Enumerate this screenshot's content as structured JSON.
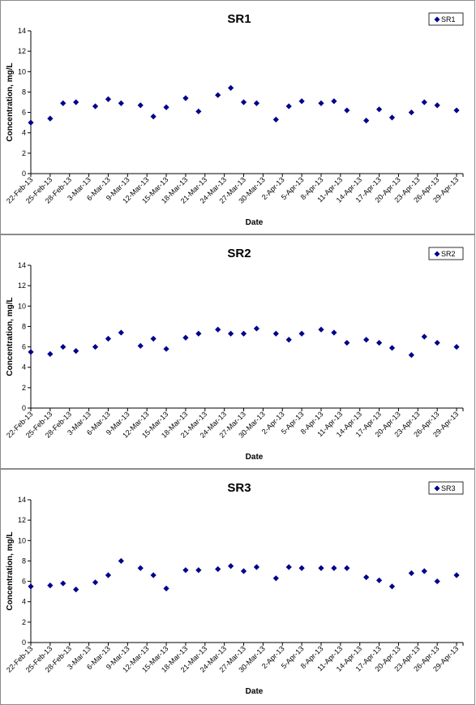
{
  "chart_data": [
    {
      "type": "scatter",
      "title": "SR1",
      "xlabel": "Date",
      "ylabel": "Concentration, mg/L",
      "ylim": [
        0,
        14
      ],
      "yticks": [
        0,
        2,
        4,
        6,
        8,
        10,
        12,
        14
      ],
      "xlim": [
        "22-Feb-13",
        "30-Apr-13"
      ],
      "xticks": [
        "22-Feb-13",
        "25-Feb-13",
        "28-Feb-13",
        "3-Mar-13",
        "6-Mar-13",
        "9-Mar-13",
        "12-Mar-13",
        "15-Mar-13",
        "18-Mar-13",
        "21-Mar-13",
        "24-Mar-13",
        "27-Mar-13",
        "30-Mar-13",
        "2-Apr-13",
        "5-Apr-13",
        "8-Apr-13",
        "11-Apr-13",
        "14-Apr-13",
        "17-Apr-13",
        "20-Apr-13",
        "23-Apr-13",
        "26-Apr-13",
        "29-Apr-13"
      ],
      "legend_position": "top-right",
      "grid": false,
      "marker_color": "#00008b",
      "series": [
        {
          "name": "SR1",
          "points": [
            {
              "x": "2013-02-22",
              "y": 5.0
            },
            {
              "x": "2013-02-25",
              "y": 5.4
            },
            {
              "x": "2013-02-27",
              "y": 6.9
            },
            {
              "x": "2013-03-01",
              "y": 7.0
            },
            {
              "x": "2013-03-04",
              "y": 6.6
            },
            {
              "x": "2013-03-06",
              "y": 7.3
            },
            {
              "x": "2013-03-08",
              "y": 6.9
            },
            {
              "x": "2013-03-11",
              "y": 6.7
            },
            {
              "x": "2013-03-13",
              "y": 5.6
            },
            {
              "x": "2013-03-15",
              "y": 6.5
            },
            {
              "x": "2013-03-18",
              "y": 7.4
            },
            {
              "x": "2013-03-20",
              "y": 6.1
            },
            {
              "x": "2013-03-23",
              "y": 7.7
            },
            {
              "x": "2013-03-25",
              "y": 8.4
            },
            {
              "x": "2013-03-27",
              "y": 7.0
            },
            {
              "x": "2013-03-29",
              "y": 6.9
            },
            {
              "x": "2013-04-01",
              "y": 5.3
            },
            {
              "x": "2013-04-03",
              "y": 6.6
            },
            {
              "x": "2013-04-05",
              "y": 7.1
            },
            {
              "x": "2013-04-08",
              "y": 6.9
            },
            {
              "x": "2013-04-10",
              "y": 7.1
            },
            {
              "x": "2013-04-12",
              "y": 6.2
            },
            {
              "x": "2013-04-15",
              "y": 5.2
            },
            {
              "x": "2013-04-17",
              "y": 6.3
            },
            {
              "x": "2013-04-19",
              "y": 5.5
            },
            {
              "x": "2013-04-22",
              "y": 6.0
            },
            {
              "x": "2013-04-24",
              "y": 7.0
            },
            {
              "x": "2013-04-26",
              "y": 6.7
            },
            {
              "x": "2013-04-29",
              "y": 6.2
            }
          ]
        }
      ]
    },
    {
      "type": "scatter",
      "title": "SR2",
      "xlabel": "Date",
      "ylabel": "Concentration, mg/L",
      "ylim": [
        0,
        14
      ],
      "yticks": [
        0,
        2,
        4,
        6,
        8,
        10,
        12,
        14
      ],
      "xlim": [
        "22-Feb-13",
        "30-Apr-13"
      ],
      "xticks": [
        "22-Feb-13",
        "25-Feb-13",
        "28-Feb-13",
        "3-Mar-13",
        "6-Mar-13",
        "9-Mar-13",
        "12-Mar-13",
        "15-Mar-13",
        "18-Mar-13",
        "21-Mar-13",
        "24-Mar-13",
        "27-Mar-13",
        "30-Mar-13",
        "2-Apr-13",
        "5-Apr-13",
        "8-Apr-13",
        "11-Apr-13",
        "14-Apr-13",
        "17-Apr-13",
        "20-Apr-13",
        "23-Apr-13",
        "26-Apr-13",
        "29-Apr-13"
      ],
      "legend_position": "top-right",
      "grid": false,
      "marker_color": "#00008b",
      "series": [
        {
          "name": "SR2",
          "points": [
            {
              "x": "2013-02-22",
              "y": 5.5
            },
            {
              "x": "2013-02-25",
              "y": 5.3
            },
            {
              "x": "2013-02-27",
              "y": 6.0
            },
            {
              "x": "2013-03-01",
              "y": 5.6
            },
            {
              "x": "2013-03-04",
              "y": 6.0
            },
            {
              "x": "2013-03-06",
              "y": 6.8
            },
            {
              "x": "2013-03-08",
              "y": 7.4
            },
            {
              "x": "2013-03-11",
              "y": 6.1
            },
            {
              "x": "2013-03-13",
              "y": 6.8
            },
            {
              "x": "2013-03-15",
              "y": 5.8
            },
            {
              "x": "2013-03-18",
              "y": 6.9
            },
            {
              "x": "2013-03-20",
              "y": 7.3
            },
            {
              "x": "2013-03-23",
              "y": 7.7
            },
            {
              "x": "2013-03-25",
              "y": 7.3
            },
            {
              "x": "2013-03-27",
              "y": 7.3
            },
            {
              "x": "2013-03-29",
              "y": 7.8
            },
            {
              "x": "2013-04-01",
              "y": 7.3
            },
            {
              "x": "2013-04-03",
              "y": 6.7
            },
            {
              "x": "2013-04-05",
              "y": 7.3
            },
            {
              "x": "2013-04-08",
              "y": 7.7
            },
            {
              "x": "2013-04-10",
              "y": 7.4
            },
            {
              "x": "2013-04-12",
              "y": 6.4
            },
            {
              "x": "2013-04-15",
              "y": 6.7
            },
            {
              "x": "2013-04-17",
              "y": 6.4
            },
            {
              "x": "2013-04-19",
              "y": 5.9
            },
            {
              "x": "2013-04-22",
              "y": 5.2
            },
            {
              "x": "2013-04-24",
              "y": 7.0
            },
            {
              "x": "2013-04-26",
              "y": 6.4
            },
            {
              "x": "2013-04-29",
              "y": 6.0
            }
          ]
        }
      ]
    },
    {
      "type": "scatter",
      "title": "SR3",
      "xlabel": "Date",
      "ylabel": "Concentration, mg/L",
      "ylim": [
        0,
        14
      ],
      "yticks": [
        0,
        2,
        4,
        6,
        8,
        10,
        12,
        14
      ],
      "xlim": [
        "22-Feb-13",
        "30-Apr-13"
      ],
      "xticks": [
        "22-Feb-13",
        "25-Feb-13",
        "28-Feb-13",
        "3-Mar-13",
        "6-Mar-13",
        "9-Mar-13",
        "12-Mar-13",
        "15-Mar-13",
        "18-Mar-13",
        "21-Mar-13",
        "24-Mar-13",
        "27-Mar-13",
        "30-Mar-13",
        "2-Apr-13",
        "5-Apr-13",
        "8-Apr-13",
        "11-Apr-13",
        "14-Apr-13",
        "17-Apr-13",
        "20-Apr-13",
        "23-Apr-13",
        "26-Apr-13",
        "29-Apr-13"
      ],
      "legend_position": "top-right",
      "grid": false,
      "marker_color": "#00008b",
      "series": [
        {
          "name": "SR3",
          "points": [
            {
              "x": "2013-02-22",
              "y": 5.5
            },
            {
              "x": "2013-02-25",
              "y": 5.6
            },
            {
              "x": "2013-02-27",
              "y": 5.8
            },
            {
              "x": "2013-03-01",
              "y": 5.2
            },
            {
              "x": "2013-03-04",
              "y": 5.9
            },
            {
              "x": "2013-03-06",
              "y": 6.6
            },
            {
              "x": "2013-03-08",
              "y": 8.0
            },
            {
              "x": "2013-03-11",
              "y": 7.3
            },
            {
              "x": "2013-03-13",
              "y": 6.6
            },
            {
              "x": "2013-03-15",
              "y": 5.3
            },
            {
              "x": "2013-03-18",
              "y": 7.1
            },
            {
              "x": "2013-03-20",
              "y": 7.1
            },
            {
              "x": "2013-03-23",
              "y": 7.2
            },
            {
              "x": "2013-03-25",
              "y": 7.5
            },
            {
              "x": "2013-03-27",
              "y": 7.0
            },
            {
              "x": "2013-03-29",
              "y": 7.4
            },
            {
              "x": "2013-04-01",
              "y": 6.3
            },
            {
              "x": "2013-04-03",
              "y": 7.4
            },
            {
              "x": "2013-04-05",
              "y": 7.3
            },
            {
              "x": "2013-04-08",
              "y": 7.3
            },
            {
              "x": "2013-04-10",
              "y": 7.3
            },
            {
              "x": "2013-04-12",
              "y": 7.3
            },
            {
              "x": "2013-04-15",
              "y": 6.4
            },
            {
              "x": "2013-04-17",
              "y": 6.1
            },
            {
              "x": "2013-04-19",
              "y": 5.5
            },
            {
              "x": "2013-04-22",
              "y": 6.8
            },
            {
              "x": "2013-04-24",
              "y": 7.0
            },
            {
              "x": "2013-04-26",
              "y": 6.0
            },
            {
              "x": "2013-04-29",
              "y": 6.6
            }
          ]
        }
      ]
    }
  ]
}
